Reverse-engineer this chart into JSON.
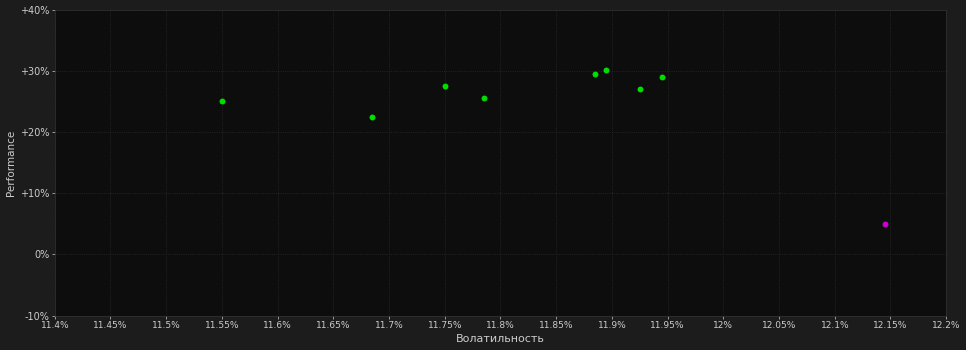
{
  "background_color": "#1c1c1c",
  "plot_bg_color": "#0d0d0d",
  "text_color": "#cccccc",
  "xlabel": "Волатильность",
  "ylabel": "Performance",
  "xlim": [
    11.4,
    12.2
  ],
  "ylim": [
    -10,
    40
  ],
  "xtick_vals": [
    11.4,
    11.45,
    11.5,
    11.55,
    11.6,
    11.65,
    11.7,
    11.75,
    11.8,
    11.85,
    11.9,
    11.95,
    12.0,
    12.05,
    12.1,
    12.15,
    12.2
  ],
  "xtick_labels": [
    "11.4%",
    "11.45%",
    "11.5%",
    "11.55%",
    "11.6%",
    "11.65%",
    "11.7%",
    "11.75%",
    "11.8%",
    "11.85%",
    "11.9%",
    "11.95%",
    "12%",
    "12.05%",
    "12.1%",
    "12.15%",
    "12.2%"
  ],
  "ytick_vals": [
    -10,
    0,
    10,
    20,
    30,
    40
  ],
  "ytick_labels": [
    "-10%",
    "0%",
    "+10%",
    "+20%",
    "+30%",
    "+40%"
  ],
  "green_points": [
    [
      11.55,
      25.0
    ],
    [
      11.685,
      22.5
    ],
    [
      11.75,
      27.5
    ],
    [
      11.785,
      25.5
    ],
    [
      11.885,
      29.5
    ],
    [
      11.895,
      30.2
    ],
    [
      11.925,
      27.0
    ],
    [
      11.945,
      29.0
    ]
  ],
  "magenta_points": [
    [
      12.145,
      5.0
    ]
  ],
  "point_size": 18,
  "green_color": "#00dd00",
  "magenta_color": "#cc00cc",
  "grid_color": "#2a2a2a",
  "grid_linestyle": ":",
  "grid_linewidth": 0.6
}
